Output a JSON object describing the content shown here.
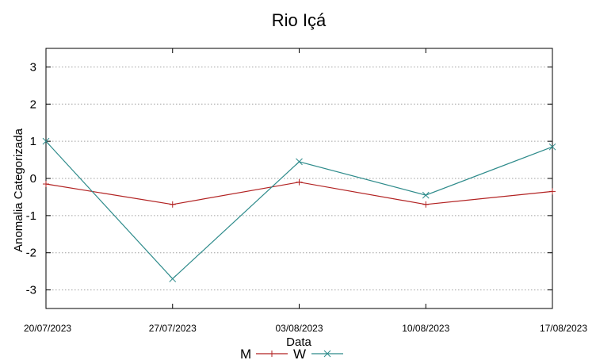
{
  "chart_data": {
    "type": "line",
    "title": "Rio Içá",
    "xlabel": "Data",
    "ylabel": "Anomalia Categorizada",
    "categories": [
      "20/07/2023",
      "27/07/2023",
      "03/08/2023",
      "10/08/2023",
      "17/08/2023"
    ],
    "ylim": [
      -3.5,
      3.5
    ],
    "yticks": [
      3,
      2,
      1,
      0,
      -1,
      -2,
      -3
    ],
    "ytick_labels": [
      "3",
      "2",
      "1",
      "0",
      "-1",
      "-2",
      "-3"
    ],
    "grid": true,
    "legend_position": "bottom-center",
    "series": [
      {
        "name": "M",
        "color": "#b22222",
        "marker": "plus",
        "values": [
          -0.15,
          -0.7,
          -0.1,
          -0.7,
          -0.35
        ]
      },
      {
        "name": "W",
        "color": "#2e8b8b",
        "marker": "cross",
        "values": [
          1.0,
          -2.7,
          0.45,
          -0.45,
          0.85
        ]
      }
    ]
  }
}
